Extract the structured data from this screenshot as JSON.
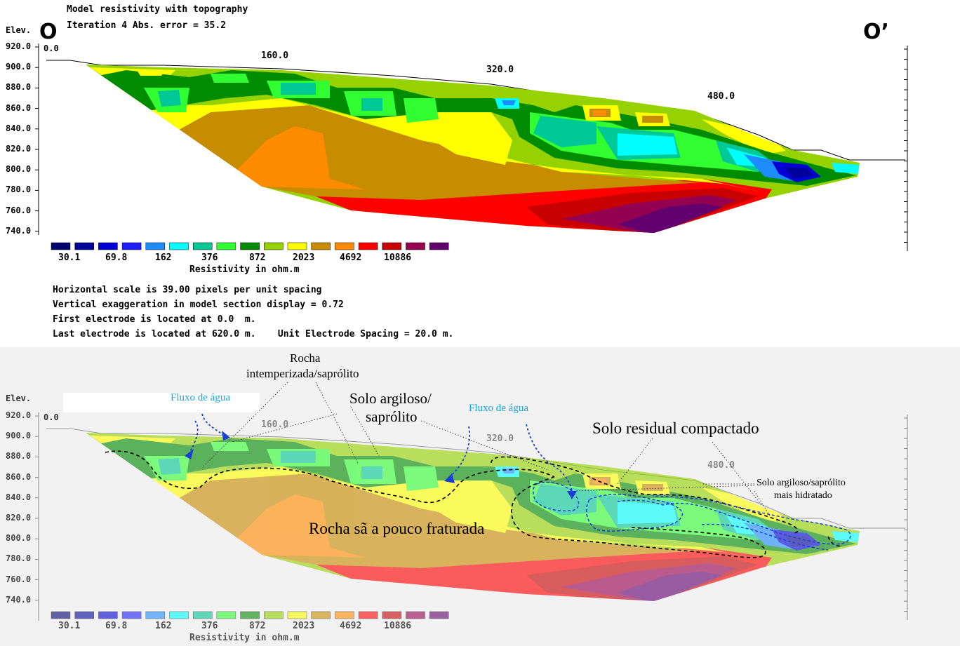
{
  "upper": {
    "title": "Model resistivity with topography",
    "iteration": "Iteration 4 Abs. error = 35.2",
    "section_start": "O",
    "section_end": "O’",
    "elev_label": "Elev.",
    "x_ticks": [
      "0.0",
      "160.0",
      "320.0",
      "480.0"
    ],
    "y_ticks": [
      "920.0",
      "900.0",
      "880.0",
      "860.0",
      "840.0",
      "820.0",
      "800.0",
      "780.0",
      "760.0",
      "740.0"
    ],
    "legend_values": [
      "30.1",
      "69.8",
      "162",
      "376",
      "872",
      "2023",
      "4692",
      "10886"
    ],
    "legend_title": "Resistivity in ohm.m",
    "info_lines": [
      "Horizontal scale is 39.00 pixels per unit spacing",
      "Vertical exaggeration in model section display = 0.72",
      "First electrode is located at 0.0  m.",
      "Last electrode is located at 620.0 m.    Unit Electrode Spacing = 20.0 m."
    ]
  },
  "lower": {
    "elev_label": "Elev.",
    "x_ticks": [
      "0.0",
      "160.0",
      "320.0",
      "480.0"
    ],
    "y_ticks": [
      "920.0",
      "900.0",
      "880.0",
      "860.0",
      "840.0",
      "820.0",
      "800.0",
      "780.0",
      "760.0",
      "740.0"
    ],
    "legend_values": [
      "30.1",
      "69.8",
      "162",
      "376",
      "872",
      "2023",
      "4692",
      "10886"
    ],
    "legend_title": "Resistivity in ohm.m",
    "annotations": {
      "rocha_intemperizada_1": "Rocha",
      "rocha_intemperizada_2": "intemperizada/saprólito",
      "fluxo_agua_1": "Fluxo de água",
      "fluxo_agua_2": "Fluxo de água",
      "solo_argiloso_1": "Solo argiloso/",
      "solo_argiloso_2": "saprólito",
      "solo_residual": "Solo residual compactado",
      "solo_hidratado_1": "Solo argiloso/saprólito",
      "solo_hidratado_2": "mais hidratado",
      "rocha_sa": "Rocha sã a pouco fraturada"
    }
  },
  "colors": {
    "scale": [
      "#00006e",
      "#00009a",
      "#0000d4",
      "#1e1eff",
      "#1e8cff",
      "#00ffff",
      "#00c896",
      "#32ff32",
      "#008c00",
      "#96d200",
      "#ffff00",
      "#c88c00",
      "#ff8c00",
      "#ff0000",
      "#c80000",
      "#960050",
      "#64006e"
    ]
  }
}
